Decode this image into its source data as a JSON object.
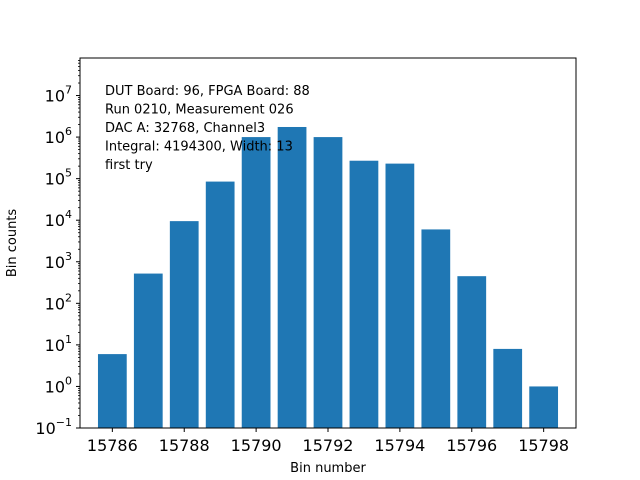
{
  "chart_data": {
    "type": "bar",
    "title": "",
    "xlabel": "Bin number",
    "ylabel": "Bin counts",
    "yscale": "log",
    "ylim": [
      0.1,
      80000000
    ],
    "xlim": [
      15785.1,
      15798.9
    ],
    "grid": false,
    "legend": "none",
    "bar_color": "#1f77b4",
    "x": [
      15786,
      15787,
      15788,
      15789,
      15790,
      15791,
      15792,
      15793,
      15794,
      15795,
      15796,
      15797,
      15798
    ],
    "values": [
      6,
      520,
      9500,
      85000,
      1000000,
      1750000,
      1000000,
      270000,
      230000,
      6000,
      450,
      8,
      1
    ],
    "x_ticks": [
      15786,
      15788,
      15790,
      15792,
      15794,
      15796,
      15798
    ],
    "x_tick_labels": [
      "15786",
      "15788",
      "15790",
      "15792",
      "15794",
      "15796",
      "15798"
    ],
    "y_ticks": [
      0.1,
      1,
      10,
      100,
      1000,
      10000,
      100000,
      1000000,
      10000000
    ],
    "y_tick_exponents": [
      "−1",
      "0",
      "1",
      "2",
      "3",
      "4",
      "5",
      "6",
      "7"
    ],
    "annotations": [
      "DUT Board: 96, FPGA Board: 88",
      "Run 0210, Measurement 026",
      "DAC A: 32768, Channel3",
      "Integral: 4194300, Width: 13",
      "first try"
    ]
  }
}
